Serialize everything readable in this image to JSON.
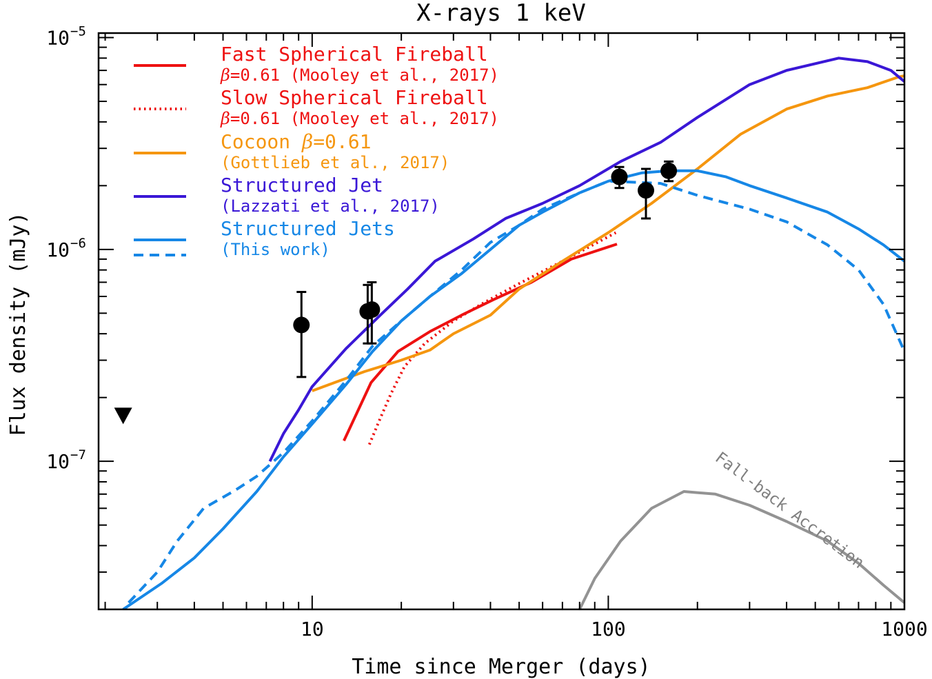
{
  "chart_data": {
    "type": "line",
    "title": "X-rays 1 keV",
    "xlabel": "Time since Merger (days)",
    "ylabel": "Flux density (mJy)",
    "xscale": "log",
    "yscale": "log",
    "xlim": [
      1.9,
      1000
    ],
    "ylim": [
      2e-08,
      1.05e-05
    ],
    "x_ticks": [
      {
        "value": 10,
        "label": "10"
      },
      {
        "value": 100,
        "label": "100"
      },
      {
        "value": 1000,
        "label": "1000"
      }
    ],
    "y_ticks": [
      {
        "value": 1e-07,
        "base": "10",
        "exp": "−7"
      },
      {
        "value": 1e-06,
        "base": "10",
        "exp": "−6"
      },
      {
        "value": 1e-05,
        "base": "10",
        "exp": "−5"
      }
    ],
    "legend_position": "top-left",
    "series": [
      {
        "id": "fast",
        "name": "Fast Spherical Fireball",
        "sub_prefix": "β",
        "sub": "=0.61 (Mooley et al., 2017)",
        "color": "#ee1111",
        "dash": "solid",
        "points": [
          [
            12.8,
            1.25e-07
          ],
          [
            15.8,
            2.35e-07
          ],
          [
            19.5,
            3.3e-07
          ],
          [
            25,
            4.1e-07
          ],
          [
            32,
            4.9e-07
          ],
          [
            41,
            5.8e-07
          ],
          [
            55,
            7e-07
          ],
          [
            75,
            9e-07
          ],
          [
            107,
            1.06e-06
          ]
        ]
      },
      {
        "id": "slow",
        "name": "Slow Spherical Fireball",
        "sub_prefix": "β",
        "sub": "=0.61 (Mooley et al., 2017)",
        "color": "#ee1111",
        "dash": "dotted",
        "points": [
          [
            15.6,
            1.2e-07
          ],
          [
            17,
            1.6e-07
          ],
          [
            18.5,
            2.1e-07
          ],
          [
            20.5,
            2.8e-07
          ],
          [
            24,
            3.6e-07
          ],
          [
            30,
            4.6e-07
          ],
          [
            38,
            5.6e-07
          ],
          [
            50,
            6.9e-07
          ],
          [
            70,
            8.8e-07
          ],
          [
            106,
            1.2e-06
          ]
        ]
      },
      {
        "id": "cocoon",
        "name": "Cocoon ",
        "name_beta": "β",
        "name_tail": "=0.61",
        "sub": "(Gottlieb et al., 2017)",
        "color": "#f5960f",
        "dash": "solid",
        "points": [
          [
            10,
            2.15e-07
          ],
          [
            15,
            2.65e-07
          ],
          [
            20,
            3e-07
          ],
          [
            25,
            3.35e-07
          ],
          [
            30,
            4e-07
          ],
          [
            40,
            4.9e-07
          ],
          [
            50,
            6.5e-07
          ],
          [
            70,
            8.8e-07
          ],
          [
            100,
            1.2e-06
          ],
          [
            140,
            1.65e-06
          ],
          [
            200,
            2.4e-06
          ],
          [
            280,
            3.5e-06
          ],
          [
            400,
            4.6e-06
          ],
          [
            550,
            5.3e-06
          ],
          [
            750,
            5.8e-06
          ],
          [
            950,
            6.5e-06
          ],
          [
            1000,
            6.6e-06
          ]
        ]
      },
      {
        "id": "lazzati",
        "name": "Structured Jet",
        "sub": "(Lazzati et al., 2017)",
        "color": "#3a17d6",
        "dash": "solid",
        "points": [
          [
            7.2,
            1e-07
          ],
          [
            8,
            1.35e-07
          ],
          [
            9,
            1.75e-07
          ],
          [
            10,
            2.25e-07
          ],
          [
            13,
            3.4e-07
          ],
          [
            17,
            4.9e-07
          ],
          [
            21,
            6.5e-07
          ],
          [
            26,
            8.8e-07
          ],
          [
            35,
            1.12e-06
          ],
          [
            45,
            1.4e-06
          ],
          [
            60,
            1.65e-06
          ],
          [
            80,
            2e-06
          ],
          [
            110,
            2.6e-06
          ],
          [
            150,
            3.2e-06
          ],
          [
            200,
            4.2e-06
          ],
          [
            300,
            6e-06
          ],
          [
            400,
            7e-06
          ],
          [
            600,
            8e-06
          ],
          [
            750,
            7.7e-06
          ],
          [
            900,
            7e-06
          ],
          [
            1000,
            6.2e-06
          ]
        ]
      },
      {
        "id": "this_solid",
        "name": "Structured Jets",
        "sub": "(This work)",
        "color": "#1687e6",
        "dash": "solid",
        "points": [
          [
            2.3,
            2e-08
          ],
          [
            3.1,
            2.65e-08
          ],
          [
            4,
            3.5e-08
          ],
          [
            5,
            4.8e-08
          ],
          [
            6.5,
            7.2e-08
          ],
          [
            8,
            1.05e-07
          ],
          [
            10,
            1.5e-07
          ],
          [
            13,
            2.3e-07
          ],
          [
            16,
            3.3e-07
          ],
          [
            20,
            4.6e-07
          ],
          [
            25,
            6e-07
          ],
          [
            32,
            7.7e-07
          ],
          [
            40,
            1e-06
          ],
          [
            50,
            1.3e-06
          ],
          [
            60,
            1.5e-06
          ],
          [
            80,
            1.85e-06
          ],
          [
            100,
            2.1e-06
          ],
          [
            130,
            2.3e-06
          ],
          [
            160,
            2.35e-06
          ],
          [
            200,
            2.35e-06
          ],
          [
            250,
            2.2e-06
          ],
          [
            300,
            2e-06
          ],
          [
            400,
            1.75e-06
          ],
          [
            550,
            1.5e-06
          ],
          [
            700,
            1.25e-06
          ],
          [
            850,
            1.05e-06
          ],
          [
            1000,
            8.8e-07
          ]
        ]
      },
      {
        "id": "this_dashed",
        "color": "#1687e6",
        "dash": "dashed",
        "points": [
          [
            2.4,
            2.15e-08
          ],
          [
            3,
            3e-08
          ],
          [
            3.5,
            4.2e-08
          ],
          [
            4.3,
            6e-08
          ],
          [
            5.5,
            7.3e-08
          ],
          [
            6.5,
            8.5e-08
          ],
          [
            8,
            1.1e-07
          ],
          [
            10,
            1.55e-07
          ],
          [
            13,
            2.4e-07
          ],
          [
            16,
            3.5e-07
          ],
          [
            20,
            4.6e-07
          ],
          [
            25,
            6e-07
          ],
          [
            32,
            8e-07
          ],
          [
            40,
            1.08e-06
          ],
          [
            50,
            1.3e-06
          ],
          [
            60,
            1.55e-06
          ],
          [
            80,
            1.85e-06
          ],
          [
            100,
            2.1e-06
          ],
          [
            150,
            2.05e-06
          ],
          [
            200,
            1.8e-06
          ],
          [
            300,
            1.55e-06
          ],
          [
            400,
            1.35e-06
          ],
          [
            550,
            1.05e-06
          ],
          [
            700,
            8e-07
          ],
          [
            850,
            5.5e-07
          ],
          [
            1000,
            3.3e-07
          ]
        ]
      },
      {
        "id": "fallback",
        "color": "#939393",
        "dash": "solid",
        "label": "Fall-back Accretion",
        "points": [
          [
            80,
            2e-08
          ],
          [
            90,
            2.8e-08
          ],
          [
            110,
            4.2e-08
          ],
          [
            140,
            6e-08
          ],
          [
            180,
            7.2e-08
          ],
          [
            230,
            7e-08
          ],
          [
            300,
            6.2e-08
          ],
          [
            400,
            5.2e-08
          ],
          [
            550,
            4.2e-08
          ],
          [
            700,
            3.3e-08
          ],
          [
            850,
            2.6e-08
          ],
          [
            1000,
            2.15e-08
          ]
        ]
      }
    ],
    "observations": [
      {
        "x": 9.2,
        "y": 4.4e-07,
        "yerr_low": 2.5e-07,
        "yerr_high": 6.3e-07
      },
      {
        "x": 15.4,
        "y": 5.1e-07,
        "yerr_low": 3.6e-07,
        "yerr_high": 6.8e-07
      },
      {
        "x": 15.9,
        "y": 5.2e-07,
        "yerr_low": 3.6e-07,
        "yerr_high": 7e-07
      },
      {
        "x": 109,
        "y": 2.2e-06,
        "yerr_low": 1.95e-06,
        "yerr_high": 2.45e-06
      },
      {
        "x": 134,
        "y": 1.9e-06,
        "yerr_low": 1.4e-06,
        "yerr_high": 2.4e-06
      },
      {
        "x": 160,
        "y": 2.35e-06,
        "yerr_low": 2.1e-06,
        "yerr_high": 2.6e-06
      }
    ],
    "upper_limits": [
      {
        "x": 2.3,
        "y": 1.65e-07
      }
    ]
  }
}
